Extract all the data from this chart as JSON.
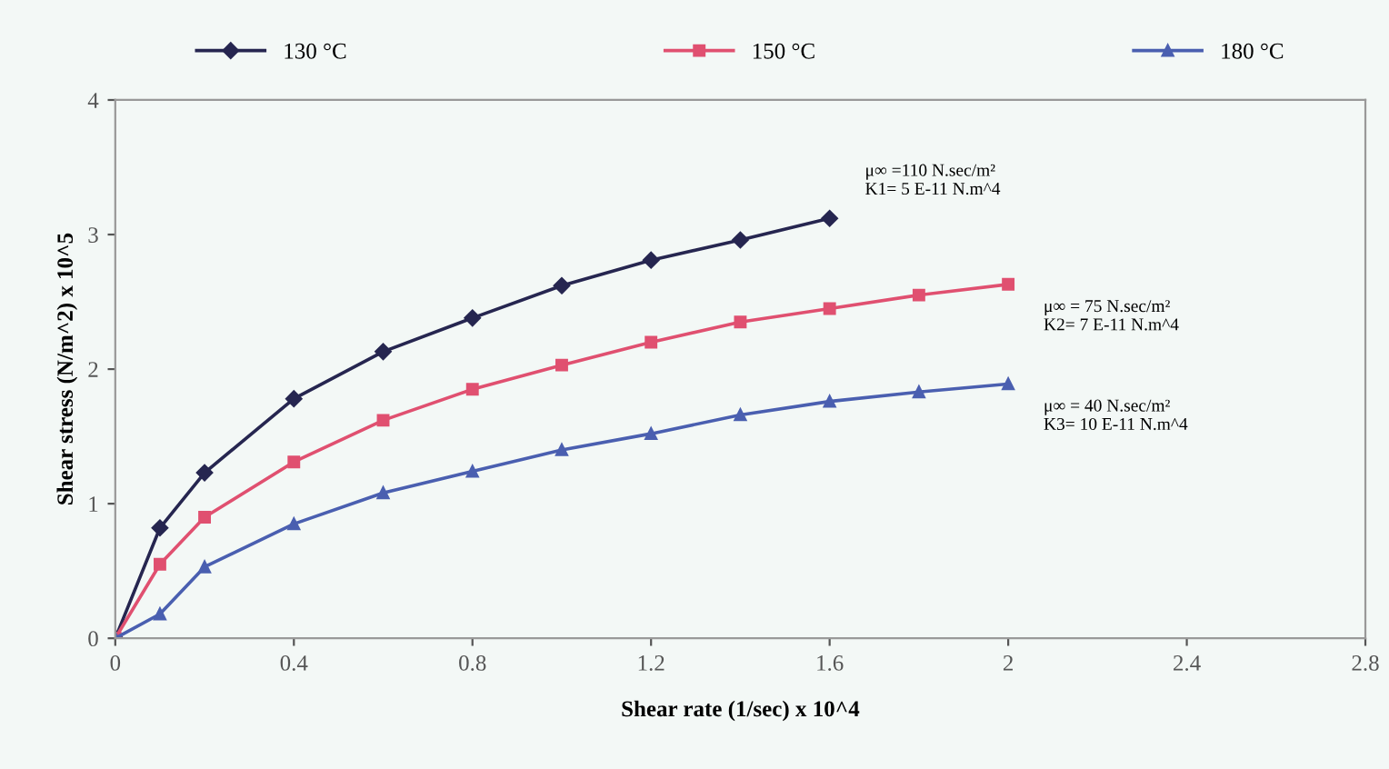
{
  "chart_data": {
    "type": "line",
    "xlabel": "Shear rate (1/sec) x 10^4",
    "ylabel": "Shear stress (N/m^2) x 10^5",
    "xlim": [
      0,
      2.8
    ],
    "xticks": [
      0,
      0.4,
      0.8,
      1.2,
      1.6,
      2,
      2.4,
      2.8
    ],
    "ylim": [
      0,
      4
    ],
    "yticks": [
      0,
      1,
      2,
      3,
      4
    ],
    "grid": false,
    "legend": "top",
    "line_style": "solid",
    "series": [
      {
        "name": "130 °C",
        "color": "#262650",
        "marker": "diamond",
        "x": [
          0,
          0.1,
          0.2,
          0.4,
          0.6,
          0.8,
          1.0,
          1.2,
          1.4,
          1.6
        ],
        "values": [
          0,
          0.82,
          1.23,
          1.78,
          2.13,
          2.38,
          2.62,
          2.81,
          2.96,
          3.12
        ]
      },
      {
        "name": "150 °C",
        "color": "#e05070",
        "marker": "square",
        "x": [
          0,
          0.1,
          0.2,
          0.4,
          0.6,
          0.8,
          1.0,
          1.2,
          1.4,
          1.6,
          1.8,
          2.0
        ],
        "values": [
          0,
          0.55,
          0.9,
          1.31,
          1.62,
          1.85,
          2.03,
          2.2,
          2.35,
          2.45,
          2.55,
          2.63
        ]
      },
      {
        "name": "180 °C",
        "color": "#4a5fb0",
        "marker": "triangle",
        "x": [
          0,
          0.1,
          0.2,
          0.4,
          0.6,
          0.8,
          1.0,
          1.2,
          1.4,
          1.6,
          1.8,
          2.0
        ],
        "values": [
          0,
          0.18,
          0.53,
          0.85,
          1.08,
          1.24,
          1.4,
          1.52,
          1.66,
          1.76,
          1.83,
          1.89
        ]
      }
    ],
    "annotations": [
      "μ∞ =110 N.sec/m²\nK1= 5 E-11 N.m^4",
      "μ∞ = 75 N.sec/m²\nK2= 7 E-11 N.m^4",
      "μ∞ = 40 N.sec/m²\nK3= 10 E-11 N.m^4"
    ]
  }
}
